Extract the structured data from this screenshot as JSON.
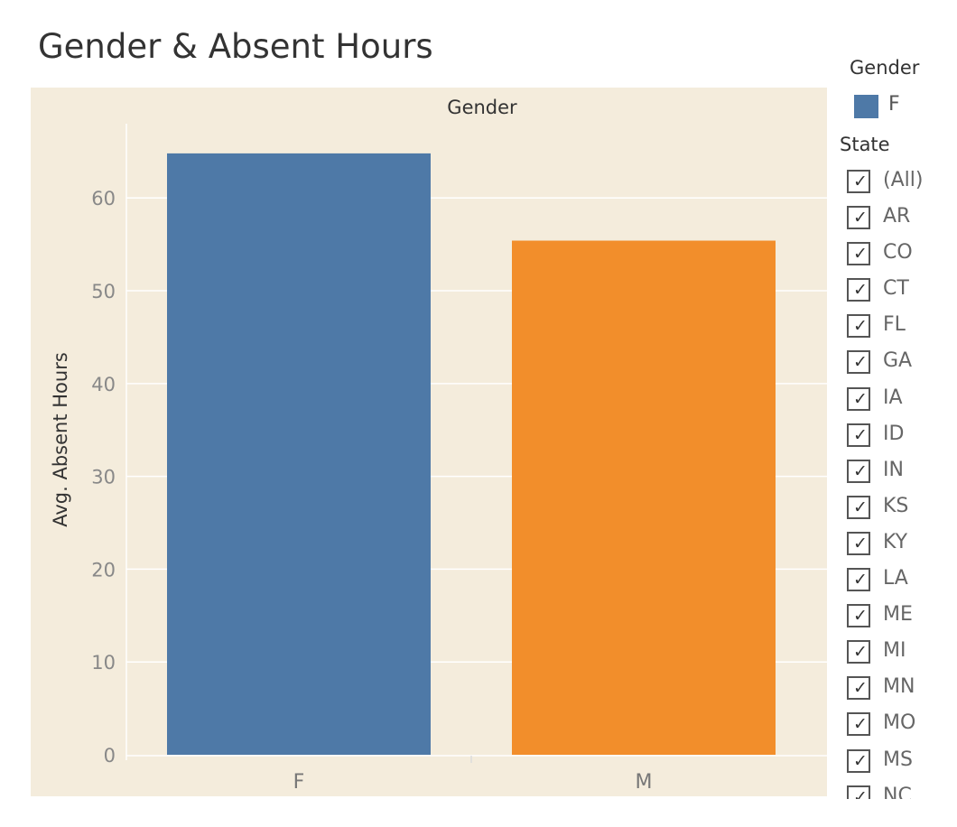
{
  "title": "Gender & Absent Hours",
  "chart_data": {
    "type": "bar",
    "column_header": "Gender",
    "categories": [
      "F",
      "M"
    ],
    "values": [
      64.8,
      55.4
    ],
    "colors": [
      "#4e79a7",
      "#f28e2b"
    ],
    "xlabel": "",
    "ylabel": "Avg. Absent Hours",
    "ylim": [
      0,
      68
    ],
    "yticks": [
      0,
      10,
      20,
      30,
      40,
      50,
      60
    ],
    "grid": true,
    "background": "#f4ecdc"
  },
  "legend": {
    "title": "Gender",
    "items": [
      {
        "label": "F",
        "color": "#4e79a7"
      }
    ]
  },
  "state_filter": {
    "title": "State",
    "check_icon": "check-icon",
    "items": [
      {
        "label": "(All)",
        "checked": true
      },
      {
        "label": "AR",
        "checked": true
      },
      {
        "label": "CO",
        "checked": true
      },
      {
        "label": "CT",
        "checked": true
      },
      {
        "label": "FL",
        "checked": true
      },
      {
        "label": "GA",
        "checked": true
      },
      {
        "label": "IA",
        "checked": true
      },
      {
        "label": "ID",
        "checked": true
      },
      {
        "label": "IN",
        "checked": true
      },
      {
        "label": "KS",
        "checked": true
      },
      {
        "label": "KY",
        "checked": true
      },
      {
        "label": "LA",
        "checked": true
      },
      {
        "label": "ME",
        "checked": true
      },
      {
        "label": "MI",
        "checked": true
      },
      {
        "label": "MN",
        "checked": true
      },
      {
        "label": "MO",
        "checked": true
      },
      {
        "label": "MS",
        "checked": true
      },
      {
        "label": "NC",
        "checked": true
      }
    ]
  }
}
